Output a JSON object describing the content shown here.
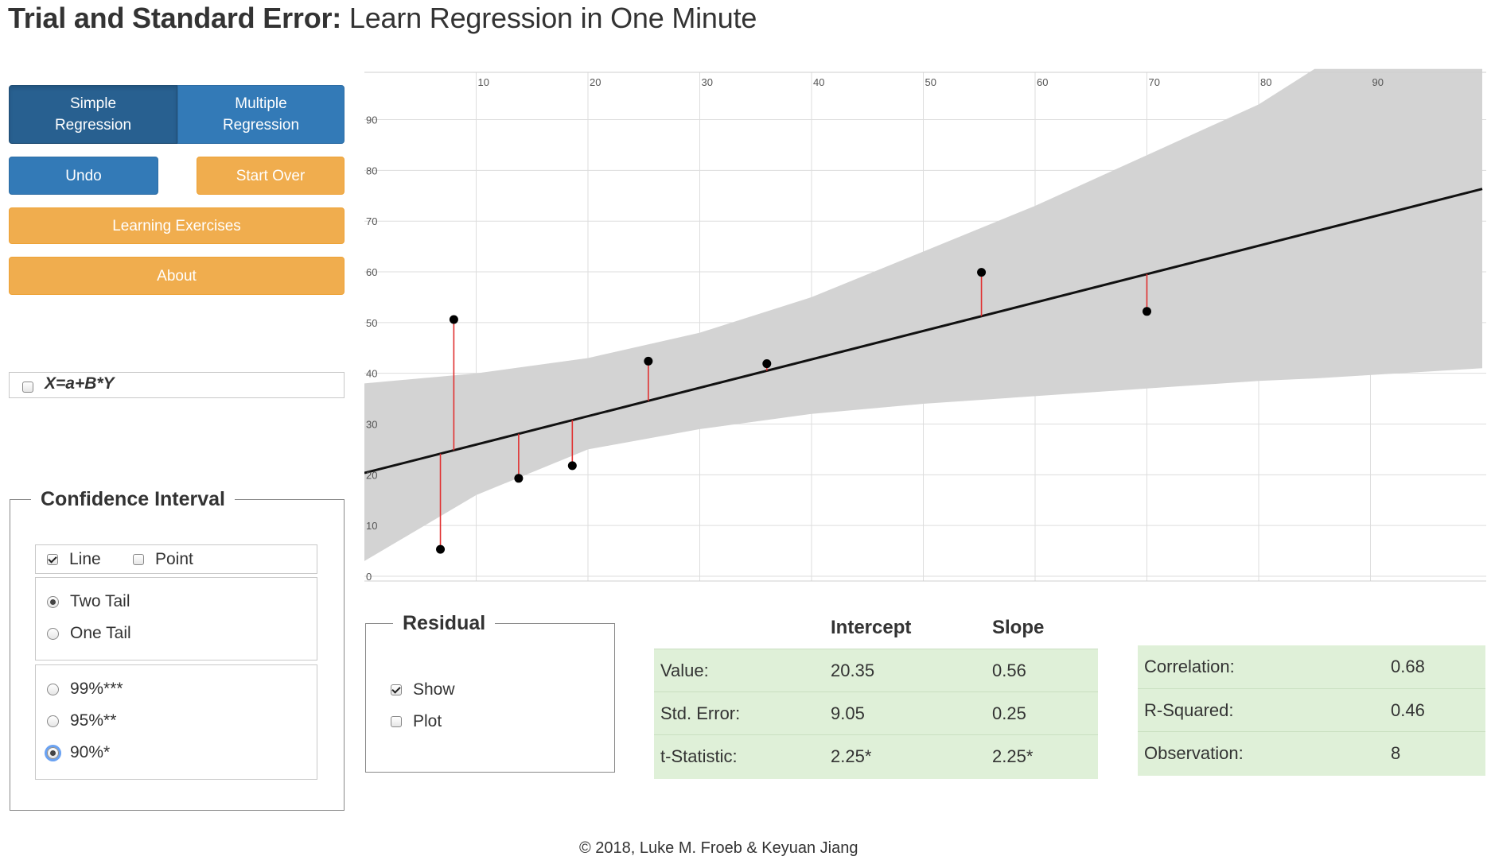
{
  "title": {
    "bold": "Trial and Standard Error:",
    "rest": " Learn Regression in One Minute"
  },
  "buttons": {
    "simple_line1": "Simple",
    "simple_line2": "Regression",
    "multiple_line1": "Multiple",
    "multiple_line2": "Regression",
    "undo": "Undo",
    "start_over": "Start Over",
    "learning_exercises": "Learning Exercises",
    "about": "About"
  },
  "swap_axes": {
    "label": "X=a+B*Y",
    "checked": false
  },
  "confidence_interval": {
    "legend": "Confidence Interval",
    "line_label": "Line",
    "line_checked": true,
    "point_label": "Point",
    "point_checked": false,
    "two_tail": "Two Tail",
    "one_tail": "One Tail",
    "selected_tail": "Two Tail",
    "level_99": "99%***",
    "level_95": "95%**",
    "level_90": "90%*",
    "selected_level": "90%*"
  },
  "residual": {
    "legend": "Residual",
    "show_label": "Show",
    "show_checked": true,
    "plot_label": "Plot",
    "plot_checked": false
  },
  "coef_table": {
    "col_intercept": "Intercept",
    "col_slope": "Slope",
    "rows": [
      {
        "label": "Value:",
        "intercept": "20.35",
        "slope": "0.56"
      },
      {
        "label": "Std. Error:",
        "intercept": "9.05",
        "slope": "0.25"
      },
      {
        "label": "t-Statistic:",
        "intercept": "2.25*",
        "slope": "2.25*"
      }
    ]
  },
  "stats_table": {
    "rows": [
      {
        "label": "Correlation:",
        "value": "0.68"
      },
      {
        "label": "R-Squared:",
        "value": "0.46"
      },
      {
        "label": "Observation:",
        "value": "8"
      }
    ]
  },
  "footer": "© 2018, Luke M. Froeb & Keyuan Jiang",
  "chart_data": {
    "type": "scatter",
    "xlim": [
      0,
      100
    ],
    "ylim": [
      0,
      100
    ],
    "x_ticks": [
      10,
      20,
      30,
      40,
      50,
      60,
      70,
      80,
      90
    ],
    "y_ticks": [
      0,
      10,
      20,
      30,
      40,
      50,
      60,
      70,
      80,
      90
    ],
    "grid": true,
    "points": [
      {
        "x": 6.8,
        "y": 5.3
      },
      {
        "x": 8.0,
        "y": 50.6
      },
      {
        "x": 13.8,
        "y": 19.3
      },
      {
        "x": 18.6,
        "y": 21.8
      },
      {
        "x": 25.4,
        "y": 42.4
      },
      {
        "x": 36.0,
        "y": 41.9
      },
      {
        "x": 55.2,
        "y": 59.9
      },
      {
        "x": 70.0,
        "y": 52.2
      }
    ],
    "fit_line": {
      "intercept": 20.35,
      "slope": 0.56
    },
    "confidence_band": {
      "x": [
        0,
        10,
        20,
        30,
        40,
        50,
        60,
        70,
        80,
        85,
        100
      ],
      "lower": [
        3,
        16,
        25,
        29,
        32,
        34,
        35.5,
        37,
        38.5,
        39,
        41
      ],
      "upper": [
        38,
        40,
        43,
        48,
        55,
        64,
        73,
        83,
        93,
        100,
        100
      ]
    },
    "show_residuals": true,
    "colors": {
      "points": "#000000",
      "fit": "#111111",
      "residual": "#e03030",
      "band": "#d3d3d3",
      "grid": "#dddddd"
    }
  }
}
